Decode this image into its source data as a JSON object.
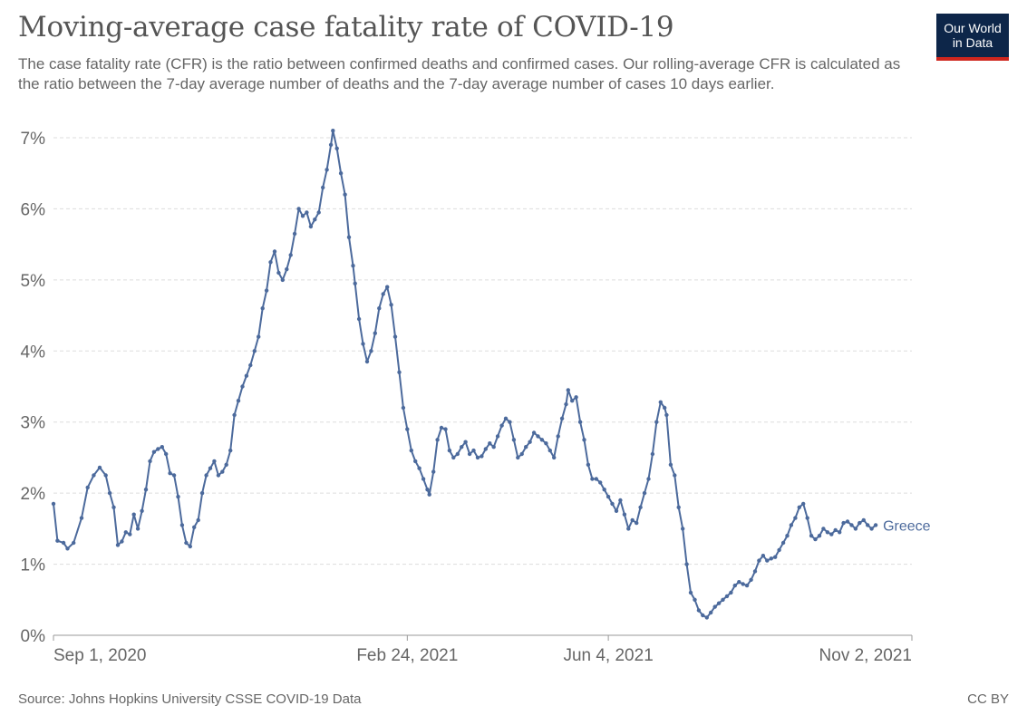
{
  "header": {
    "title": "Moving-average case fatality rate of COVID-19",
    "subtitle": "The case fatality rate (CFR) is the ratio between confirmed deaths and confirmed cases. Our rolling-average CFR is calculated as the ratio between the 7-day average number of deaths and the 7-day average number of cases 10 days earlier."
  },
  "logo": {
    "line1": "Our World",
    "line2": "in Data"
  },
  "footer": {
    "source": "Source: Johns Hopkins University CSSE COVID-19 Data",
    "license": "CC BY"
  },
  "colors": {
    "series": "#4c6a9c",
    "grid": "#dddddd",
    "axis": "#999999",
    "logo_bg": "#0d2649",
    "logo_accent": "#ce261e"
  },
  "chart_data": {
    "type": "line",
    "title": "Moving-average case fatality rate of COVID-19",
    "xlabel": "",
    "ylabel": "",
    "ylim": [
      0,
      7
    ],
    "yticks": [
      0,
      1,
      2,
      3,
      4,
      5,
      6,
      7
    ],
    "ytick_labels": [
      "0%",
      "1%",
      "2%",
      "3%",
      "4%",
      "5%",
      "6%",
      "7%"
    ],
    "xlim": [
      0,
      427
    ],
    "xticks": [
      0,
      176,
      276,
      427
    ],
    "xtick_labels": [
      "Sep 1, 2020",
      "Feb 24, 2021",
      "Jun 4, 2021",
      "Nov 2, 2021"
    ],
    "grid": true,
    "series": [
      {
        "name": "Greece",
        "x_unit": "days since Sep 1, 2020",
        "points": [
          [
            0,
            1.85
          ],
          [
            2,
            1.33
          ],
          [
            5,
            1.3
          ],
          [
            7,
            1.22
          ],
          [
            10,
            1.3
          ],
          [
            14,
            1.65
          ],
          [
            17,
            2.08
          ],
          [
            20,
            2.25
          ],
          [
            23,
            2.36
          ],
          [
            26,
            2.25
          ],
          [
            28,
            2.0
          ],
          [
            30,
            1.8
          ],
          [
            32,
            1.27
          ],
          [
            34,
            1.32
          ],
          [
            36,
            1.45
          ],
          [
            38,
            1.42
          ],
          [
            40,
            1.7
          ],
          [
            42,
            1.5
          ],
          [
            44,
            1.75
          ],
          [
            46,
            2.05
          ],
          [
            48,
            2.45
          ],
          [
            50,
            2.58
          ],
          [
            52,
            2.62
          ],
          [
            54,
            2.65
          ],
          [
            56,
            2.55
          ],
          [
            58,
            2.28
          ],
          [
            60,
            2.25
          ],
          [
            62,
            1.95
          ],
          [
            64,
            1.55
          ],
          [
            66,
            1.3
          ],
          [
            68,
            1.25
          ],
          [
            70,
            1.52
          ],
          [
            72,
            1.62
          ],
          [
            74,
            2.0
          ],
          [
            76,
            2.25
          ],
          [
            78,
            2.35
          ],
          [
            80,
            2.45
          ],
          [
            82,
            2.25
          ],
          [
            84,
            2.3
          ],
          [
            86,
            2.4
          ],
          [
            88,
            2.6
          ],
          [
            90,
            3.1
          ],
          [
            92,
            3.3
          ],
          [
            94,
            3.5
          ],
          [
            96,
            3.65
          ],
          [
            98,
            3.8
          ],
          [
            100,
            4.0
          ],
          [
            102,
            4.2
          ],
          [
            104,
            4.6
          ],
          [
            106,
            4.85
          ],
          [
            108,
            5.25
          ],
          [
            110,
            5.4
          ],
          [
            112,
            5.1
          ],
          [
            114,
            5.0
          ],
          [
            116,
            5.15
          ],
          [
            118,
            5.35
          ],
          [
            120,
            5.65
          ],
          [
            122,
            6.0
          ],
          [
            124,
            5.9
          ],
          [
            126,
            5.95
          ],
          [
            128,
            5.75
          ],
          [
            130,
            5.85
          ],
          [
            132,
            5.95
          ],
          [
            134,
            6.3
          ],
          [
            136,
            6.55
          ],
          [
            138,
            6.9
          ],
          [
            139,
            7.1
          ],
          [
            141,
            6.85
          ],
          [
            143,
            6.5
          ],
          [
            145,
            6.2
          ],
          [
            147,
            5.6
          ],
          [
            149,
            5.2
          ],
          [
            150,
            4.95
          ],
          [
            152,
            4.45
          ],
          [
            154,
            4.1
          ],
          [
            156,
            3.85
          ],
          [
            158,
            4.0
          ],
          [
            160,
            4.25
          ],
          [
            162,
            4.6
          ],
          [
            164,
            4.8
          ],
          [
            166,
            4.9
          ],
          [
            168,
            4.65
          ],
          [
            170,
            4.2
          ],
          [
            172,
            3.7
          ],
          [
            174,
            3.2
          ],
          [
            176,
            2.9
          ],
          [
            178,
            2.6
          ],
          [
            180,
            2.45
          ],
          [
            182,
            2.35
          ],
          [
            184,
            2.2
          ],
          [
            186,
            2.05
          ],
          [
            187,
            1.98
          ],
          [
            189,
            2.3
          ],
          [
            191,
            2.75
          ],
          [
            193,
            2.92
          ],
          [
            195,
            2.9
          ],
          [
            197,
            2.6
          ],
          [
            199,
            2.5
          ],
          [
            201,
            2.55
          ],
          [
            203,
            2.65
          ],
          [
            205,
            2.72
          ],
          [
            207,
            2.55
          ],
          [
            209,
            2.6
          ],
          [
            211,
            2.5
          ],
          [
            213,
            2.52
          ],
          [
            215,
            2.62
          ],
          [
            217,
            2.7
          ],
          [
            219,
            2.65
          ],
          [
            221,
            2.8
          ],
          [
            223,
            2.95
          ],
          [
            225,
            3.05
          ],
          [
            227,
            3.0
          ],
          [
            229,
            2.75
          ],
          [
            231,
            2.5
          ],
          [
            233,
            2.55
          ],
          [
            235,
            2.65
          ],
          [
            237,
            2.72
          ],
          [
            239,
            2.85
          ],
          [
            241,
            2.8
          ],
          [
            243,
            2.75
          ],
          [
            245,
            2.7
          ],
          [
            247,
            2.6
          ],
          [
            249,
            2.5
          ],
          [
            251,
            2.8
          ],
          [
            253,
            3.05
          ],
          [
            255,
            3.25
          ],
          [
            256,
            3.45
          ],
          [
            258,
            3.3
          ],
          [
            260,
            3.35
          ],
          [
            262,
            3.0
          ],
          [
            264,
            2.75
          ],
          [
            266,
            2.4
          ],
          [
            268,
            2.2
          ],
          [
            270,
            2.2
          ],
          [
            272,
            2.15
          ],
          [
            274,
            2.05
          ],
          [
            276,
            1.95
          ],
          [
            278,
            1.85
          ],
          [
            280,
            1.75
          ],
          [
            282,
            1.9
          ],
          [
            284,
            1.7
          ],
          [
            286,
            1.5
          ],
          [
            288,
            1.62
          ],
          [
            290,
            1.58
          ],
          [
            292,
            1.8
          ],
          [
            294,
            2.0
          ],
          [
            296,
            2.2
          ],
          [
            298,
            2.55
          ],
          [
            300,
            3.0
          ],
          [
            302,
            3.28
          ],
          [
            304,
            3.2
          ],
          [
            305,
            3.1
          ],
          [
            307,
            2.4
          ],
          [
            309,
            2.25
          ],
          [
            311,
            1.8
          ],
          [
            313,
            1.5
          ],
          [
            315,
            1.0
          ],
          [
            317,
            0.6
          ],
          [
            319,
            0.5
          ],
          [
            321,
            0.35
          ],
          [
            323,
            0.28
          ],
          [
            325,
            0.25
          ],
          [
            327,
            0.32
          ],
          [
            329,
            0.4
          ],
          [
            331,
            0.45
          ],
          [
            333,
            0.5
          ],
          [
            335,
            0.55
          ],
          [
            337,
            0.6
          ],
          [
            339,
            0.7
          ],
          [
            341,
            0.75
          ],
          [
            343,
            0.72
          ],
          [
            345,
            0.7
          ],
          [
            347,
            0.78
          ],
          [
            349,
            0.9
          ],
          [
            351,
            1.05
          ],
          [
            353,
            1.12
          ],
          [
            355,
            1.05
          ],
          [
            357,
            1.08
          ],
          [
            359,
            1.1
          ],
          [
            361,
            1.2
          ],
          [
            363,
            1.3
          ],
          [
            365,
            1.4
          ],
          [
            367,
            1.55
          ],
          [
            369,
            1.65
          ],
          [
            371,
            1.8
          ],
          [
            373,
            1.85
          ],
          [
            375,
            1.65
          ],
          [
            377,
            1.4
          ],
          [
            379,
            1.35
          ],
          [
            381,
            1.4
          ],
          [
            383,
            1.5
          ],
          [
            385,
            1.45
          ],
          [
            387,
            1.42
          ],
          [
            389,
            1.48
          ],
          [
            391,
            1.45
          ],
          [
            393,
            1.58
          ],
          [
            395,
            1.6
          ],
          [
            397,
            1.55
          ],
          [
            399,
            1.5
          ],
          [
            401,
            1.58
          ],
          [
            403,
            1.62
          ],
          [
            405,
            1.55
          ],
          [
            407,
            1.5
          ],
          [
            409,
            1.55
          ]
        ]
      }
    ]
  }
}
